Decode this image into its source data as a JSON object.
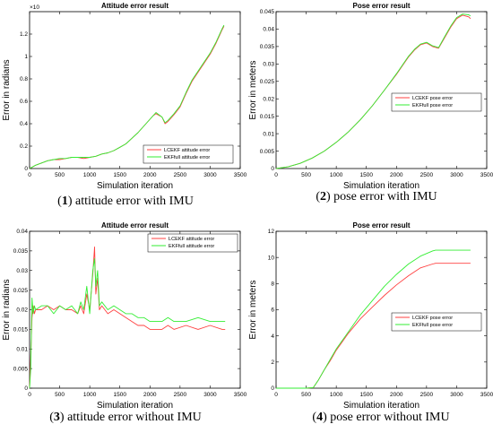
{
  "colors": {
    "lcekf": "#ff4040",
    "ekffull": "#33ee33",
    "axis": "#000000"
  },
  "captions": [
    {
      "num": "1",
      "text": "attitude error with IMU"
    },
    {
      "num": "2",
      "text": "pose error with IMU"
    },
    {
      "num": "3",
      "text": "attitude error without IMU"
    },
    {
      "num": "4",
      "text": "pose error without IMU"
    }
  ],
  "chart_data": [
    {
      "type": "line",
      "title": "Attitude error result",
      "xlabel": "Simulation iteration",
      "ylabel": "Error in radians",
      "y_multiplier": "×10",
      "y_exponent": "-3",
      "xlim": [
        0,
        3500
      ],
      "ylim": [
        0,
        1.4
      ],
      "xticks": [
        "0",
        "500",
        "1000",
        "1500",
        "2000",
        "2500",
        "3000",
        "3500"
      ],
      "yticks": [
        "0",
        "0.2",
        "0.4",
        "0.6",
        "0.8",
        "1",
        "1.2"
      ],
      "legend": "bottom-right",
      "series": [
        {
          "name": "LCEKF attitude error",
          "x": [
            0,
            100,
            200,
            300,
            400,
            500,
            600,
            700,
            800,
            900,
            1000,
            1100,
            1200,
            1300,
            1400,
            1500,
            1600,
            1700,
            1800,
            1900,
            2000,
            2050,
            2100,
            2200,
            2250,
            2300,
            2400,
            2500,
            2600,
            2700,
            2800,
            2900,
            3000,
            3100,
            3200,
            3230
          ],
          "y": [
            0,
            0.03,
            0.05,
            0.07,
            0.08,
            0.08,
            0.09,
            0.1,
            0.1,
            0.09,
            0.1,
            0.11,
            0.13,
            0.14,
            0.16,
            0.19,
            0.22,
            0.27,
            0.32,
            0.38,
            0.44,
            0.47,
            0.49,
            0.46,
            0.4,
            0.42,
            0.48,
            0.55,
            0.67,
            0.78,
            0.86,
            0.94,
            1.02,
            1.12,
            1.24,
            1.27
          ]
        },
        {
          "name": "EKFfull attitude error",
          "x": [
            0,
            100,
            200,
            300,
            400,
            500,
            600,
            700,
            800,
            900,
            1000,
            1100,
            1200,
            1300,
            1400,
            1500,
            1600,
            1700,
            1800,
            1900,
            2000,
            2050,
            2100,
            2200,
            2250,
            2300,
            2400,
            2500,
            2600,
            2700,
            2800,
            2900,
            3000,
            3100,
            3200,
            3230
          ],
          "y": [
            0,
            0.03,
            0.05,
            0.07,
            0.08,
            0.09,
            0.09,
            0.1,
            0.1,
            0.1,
            0.1,
            0.11,
            0.13,
            0.14,
            0.16,
            0.19,
            0.22,
            0.27,
            0.32,
            0.38,
            0.44,
            0.47,
            0.5,
            0.46,
            0.41,
            0.43,
            0.49,
            0.56,
            0.68,
            0.79,
            0.87,
            0.95,
            1.03,
            1.13,
            1.25,
            1.28
          ]
        }
      ]
    },
    {
      "type": "line",
      "title": "Pose error result",
      "xlabel": "Simulation iteration",
      "ylabel": "Error in meters",
      "xlim": [
        0,
        3500
      ],
      "ylim": [
        0,
        0.045
      ],
      "xticks": [
        "0",
        "500",
        "1000",
        "1500",
        "2000",
        "2500",
        "3000",
        "3500"
      ],
      "yticks": [
        "0",
        "0.005",
        "0.01",
        "0.015",
        "0.02",
        "0.025",
        "0.03",
        "0.035",
        "0.04",
        "0.045"
      ],
      "legend": "center-right",
      "series": [
        {
          "name": "LCEKF pose error",
          "x": [
            0,
            200,
            400,
            600,
            800,
            1000,
            1200,
            1400,
            1600,
            1800,
            2000,
            2100,
            2200,
            2300,
            2400,
            2500,
            2600,
            2700,
            2800,
            2900,
            3000,
            3100,
            3200,
            3230
          ],
          "y": [
            0,
            0.0005,
            0.0015,
            0.003,
            0.005,
            0.0075,
            0.0105,
            0.014,
            0.018,
            0.0225,
            0.027,
            0.0295,
            0.032,
            0.034,
            0.0355,
            0.036,
            0.035,
            0.0345,
            0.0375,
            0.0405,
            0.043,
            0.044,
            0.0435,
            0.043
          ]
        },
        {
          "name": "EKFfull pose error",
          "x": [
            0,
            200,
            400,
            600,
            800,
            1000,
            1200,
            1400,
            1600,
            1800,
            2000,
            2100,
            2200,
            2300,
            2400,
            2500,
            2600,
            2700,
            2800,
            2900,
            3000,
            3100,
            3200,
            3230
          ],
          "y": [
            0,
            0.0005,
            0.0015,
            0.003,
            0.005,
            0.0075,
            0.0105,
            0.014,
            0.018,
            0.0225,
            0.0272,
            0.0297,
            0.0322,
            0.0342,
            0.0357,
            0.0362,
            0.0352,
            0.0347,
            0.0378,
            0.0408,
            0.0433,
            0.0443,
            0.0441,
            0.0438
          ]
        }
      ]
    },
    {
      "type": "line",
      "title": "Attitude error result",
      "xlabel": "Simulation iteration",
      "ylabel": "Error in radians",
      "xlim": [
        0,
        3500
      ],
      "ylim": [
        0,
        0.04
      ],
      "xticks": [
        "0",
        "500",
        "1000",
        "1500",
        "2000",
        "2500",
        "3000",
        "3500"
      ],
      "yticks": [
        "0",
        "0.005",
        "0.01",
        "0.015",
        "0.02",
        "0.025",
        "0.03",
        "0.035",
        "0.04"
      ],
      "legend": "top-right",
      "series": [
        {
          "name": "LCEKF attitude error",
          "x": [
            0,
            20,
            40,
            60,
            80,
            100,
            200,
            300,
            400,
            500,
            600,
            700,
            800,
            850,
            900,
            950,
            1000,
            1050,
            1080,
            1100,
            1130,
            1160,
            1200,
            1300,
            1400,
            1500,
            1600,
            1700,
            1800,
            1900,
            2000,
            2100,
            2200,
            2300,
            2400,
            2600,
            2800,
            3000,
            3200,
            3250
          ],
          "y": [
            0,
            0.008,
            0.018,
            0.021,
            0.019,
            0.02,
            0.02,
            0.021,
            0.02,
            0.021,
            0.02,
            0.02,
            0.019,
            0.021,
            0.019,
            0.024,
            0.02,
            0.029,
            0.036,
            0.024,
            0.028,
            0.02,
            0.021,
            0.019,
            0.02,
            0.019,
            0.018,
            0.017,
            0.016,
            0.016,
            0.015,
            0.015,
            0.015,
            0.016,
            0.015,
            0.016,
            0.015,
            0.016,
            0.015,
            0.015
          ]
        },
        {
          "name": "EKFfull attitude error",
          "x": [
            0,
            20,
            40,
            60,
            80,
            100,
            200,
            300,
            400,
            500,
            600,
            700,
            800,
            850,
            900,
            950,
            1000,
            1050,
            1080,
            1100,
            1130,
            1160,
            1200,
            1300,
            1400,
            1500,
            1600,
            1700,
            1800,
            1900,
            2000,
            2100,
            2200,
            2300,
            2400,
            2600,
            2800,
            3000,
            3200,
            3250
          ],
          "y": [
            0,
            0.005,
            0.023,
            0.019,
            0.021,
            0.02,
            0.021,
            0.021,
            0.019,
            0.021,
            0.02,
            0.021,
            0.019,
            0.022,
            0.02,
            0.026,
            0.019,
            0.03,
            0.033,
            0.026,
            0.03,
            0.021,
            0.022,
            0.02,
            0.021,
            0.02,
            0.019,
            0.019,
            0.018,
            0.018,
            0.017,
            0.017,
            0.017,
            0.018,
            0.017,
            0.017,
            0.018,
            0.017,
            0.017,
            0.017
          ]
        }
      ]
    },
    {
      "type": "line",
      "title": "Pose error result",
      "xlabel": "Simulation iteration",
      "ylabel": "Error in meters",
      "xlim": [
        0,
        3500
      ],
      "ylim": [
        0,
        12
      ],
      "xticks": [
        "0",
        "500",
        "1000",
        "1500",
        "2000",
        "2500",
        "3000",
        "3500"
      ],
      "yticks": [
        "0",
        "2",
        "4",
        "6",
        "8",
        "10",
        "12"
      ],
      "legend": "center-right",
      "series": [
        {
          "name": "LCEKF pose error",
          "x": [
            0,
            500,
            620,
            700,
            800,
            900,
            1000,
            1200,
            1400,
            1600,
            1800,
            2000,
            2200,
            2400,
            2600,
            2650,
            2700,
            2800,
            3000,
            3200,
            3230
          ],
          "y": [
            0,
            0,
            0.05,
            0.6,
            1.4,
            2.1,
            2.9,
            4.2,
            5.3,
            6.2,
            7.1,
            7.9,
            8.6,
            9.2,
            9.5,
            9.55,
            9.55,
            9.55,
            9.55,
            9.55,
            9.55
          ]
        },
        {
          "name": "EKFfull pose error",
          "x": [
            0,
            500,
            620,
            700,
            800,
            900,
            1000,
            1200,
            1400,
            1600,
            1800,
            2000,
            2200,
            2400,
            2600,
            2650,
            2700,
            2800,
            3000,
            3200,
            3230
          ],
          "y": [
            0,
            0,
            0.05,
            0.6,
            1.4,
            2.2,
            3.0,
            4.3,
            5.6,
            6.7,
            7.8,
            8.7,
            9.5,
            10.1,
            10.5,
            10.55,
            10.55,
            10.55,
            10.55,
            10.55,
            10.55
          ]
        }
      ]
    }
  ]
}
